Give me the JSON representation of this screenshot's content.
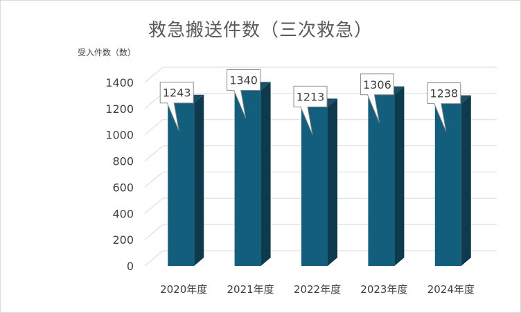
{
  "chart_data": {
    "type": "bar",
    "title": "救急搬送件数（三次救急）",
    "ylabel": "受入件数（数）",
    "xlabel": "",
    "categories": [
      "2020年度",
      "2021年度",
      "2022年度",
      "2023年度",
      "2024年度"
    ],
    "values": [
      1243,
      1340,
      1213,
      1306,
      1238
    ],
    "ylim": [
      0,
      1400
    ],
    "yticks": [
      0,
      200,
      400,
      600,
      800,
      1000,
      1200,
      1400
    ],
    "grid": true,
    "legend": "none",
    "colors": {
      "bar_front": "#135e7c",
      "bar_top": "#1a4f66",
      "bar_side": "#0d3a4d",
      "grid": "#d9d9d9",
      "callout_border": "#8a8a8a"
    }
  }
}
